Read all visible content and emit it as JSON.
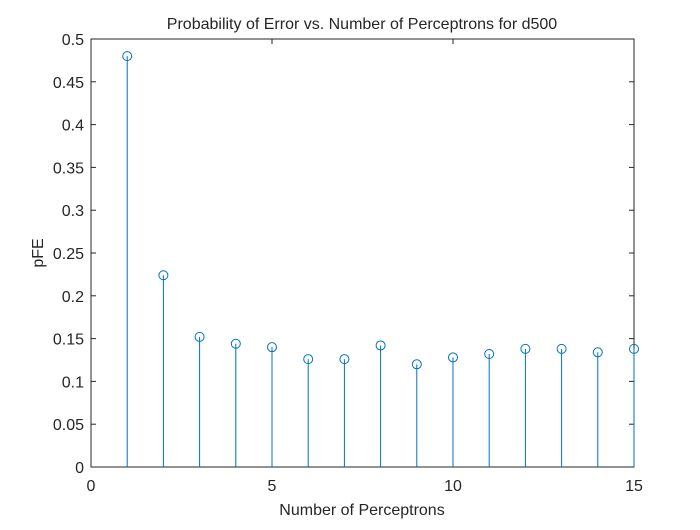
{
  "chart_data": {
    "type": "stem",
    "title": "Probability of Error vs. Number of Perceptrons for d500",
    "xlabel": "Number of Perceptrons",
    "ylabel": "pFE",
    "xlim": [
      0,
      15
    ],
    "ylim": [
      0,
      0.5
    ],
    "xticks": [
      0,
      5,
      10,
      15
    ],
    "xtick_labels": [
      "0",
      "5",
      "10",
      "15"
    ],
    "yticks": [
      0,
      0.05,
      0.1,
      0.15,
      0.2,
      0.25,
      0.3,
      0.35,
      0.4,
      0.45,
      0.5
    ],
    "ytick_labels": [
      "0",
      "0.05",
      "0.1",
      "0.15",
      "0.2",
      "0.25",
      "0.3",
      "0.35",
      "0.4",
      "0.45",
      "0.5"
    ],
    "x": [
      1,
      2,
      3,
      4,
      5,
      6,
      7,
      8,
      9,
      10,
      11,
      12,
      13,
      14,
      15
    ],
    "values": [
      0.48,
      0.224,
      0.152,
      0.144,
      0.14,
      0.126,
      0.126,
      0.142,
      0.12,
      0.128,
      0.132,
      0.138,
      0.138,
      0.134,
      0.138
    ],
    "grid": false,
    "colors": {
      "series": "#0072BD",
      "axes": "#262626",
      "background": "#ffffff"
    }
  }
}
